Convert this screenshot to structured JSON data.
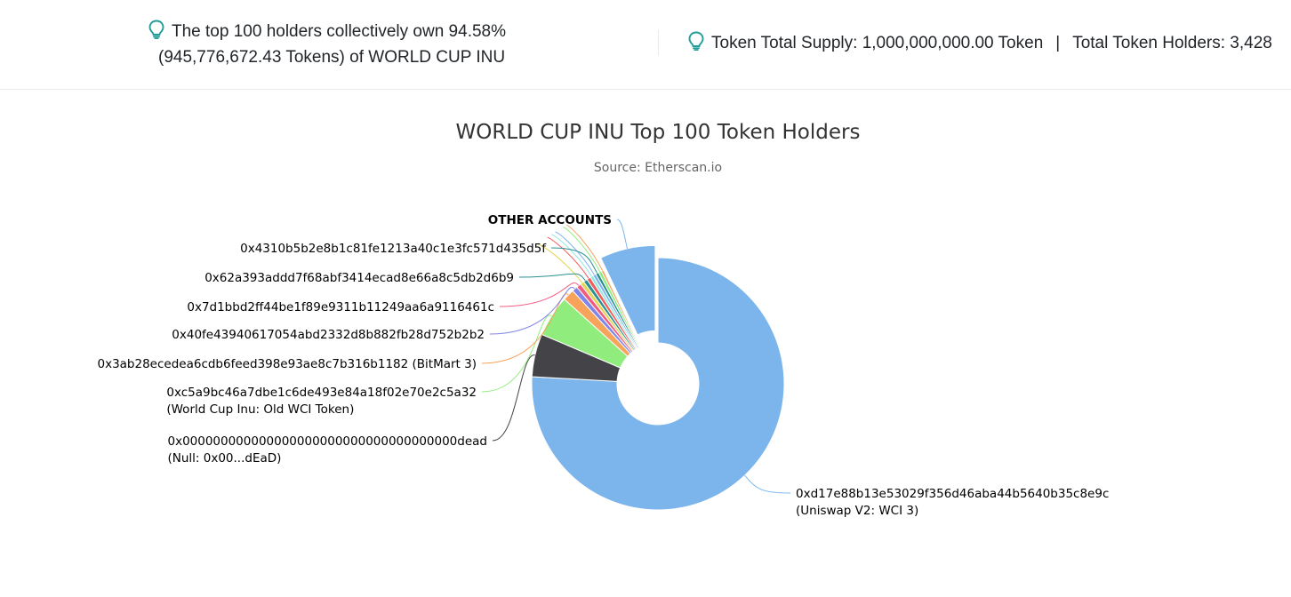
{
  "summary": {
    "holders_line1": "The top 100 holders collectively own 94.58%",
    "holders_line2": "(945,776,672.43 Tokens) of WORLD CUP INU",
    "supply_text": "Token Total Supply: 1,000,000,000.00 Token",
    "separator": "|",
    "holders_count_text": "Total Token Holders: 3,428",
    "icon": "lightbulb-icon",
    "icon_color": "#219e98"
  },
  "chart_data": {
    "type": "pie",
    "title": "WORLD CUP INU Top 100 Token Holders",
    "subtitle": "Source: Etherscan.io",
    "donut": true,
    "slices": [
      {
        "label": "0xd17e88b13e53029f356d46aba44b5640b35c8e9c",
        "sublabel": "(Uniswap V2: WCI 3)",
        "value": 75.9,
        "color": "#7cb5ec"
      },
      {
        "label": "0x000000000000000000000000000000000000dead",
        "sublabel": "(Null: 0x00...dEaD)",
        "value": 5.5,
        "color": "#434348"
      },
      {
        "label": "0xc5a9bc46a7dbe1c6de493e84a18f02e70e2c5a32",
        "sublabel": "(World Cup Inu: Old WCI Token)",
        "value": 5.3,
        "color": "#90ed7d"
      },
      {
        "label": "0x3ab28ecedea6cdb6feed398e93ae8c7b316b1182 (BitMart 3)",
        "sublabel": "",
        "value": 1.5,
        "color": "#f7a35c"
      },
      {
        "label": "0x40fe43940617054abd2332d8b882fb28d752b2b2",
        "sublabel": "",
        "value": 0.7,
        "color": "#8085e9"
      },
      {
        "label": "0x7d1bbd2ff44be1f89e9311b11249aa6a9116461c",
        "sublabel": "",
        "value": 0.6,
        "color": "#f15c80"
      },
      {
        "label": "",
        "sublabel": "",
        "value": 0.5,
        "color": "#e4d354"
      },
      {
        "label": "0x62a393addd7f68abf3414ecad8e66a8c5db2d6b9",
        "sublabel": "",
        "value": 0.5,
        "color": "#2b908f"
      },
      {
        "label": "",
        "sublabel": "",
        "value": 0.5,
        "color": "#f45b5b"
      },
      {
        "label": "",
        "sublabel": "",
        "value": 0.4,
        "color": "#91e8e1"
      },
      {
        "label": "",
        "sublabel": "",
        "value": 0.4,
        "color": "#7cb5ec"
      },
      {
        "label": "0x4310b5b2e8b1c81fe1213a40c1e3fc571d435d5f",
        "sublabel": "",
        "value": 0.4,
        "color": "#2b908f"
      },
      {
        "label": "",
        "sublabel": "",
        "value": 0.4,
        "color": "#90ed7d"
      },
      {
        "label": "",
        "sublabel": "",
        "value": 0.3,
        "color": "#f7a35c"
      },
      {
        "label": "OTHER ACCOUNTS",
        "sublabel": "",
        "value": 7.1,
        "color": "#7cb5ec",
        "sliced": true
      }
    ]
  }
}
